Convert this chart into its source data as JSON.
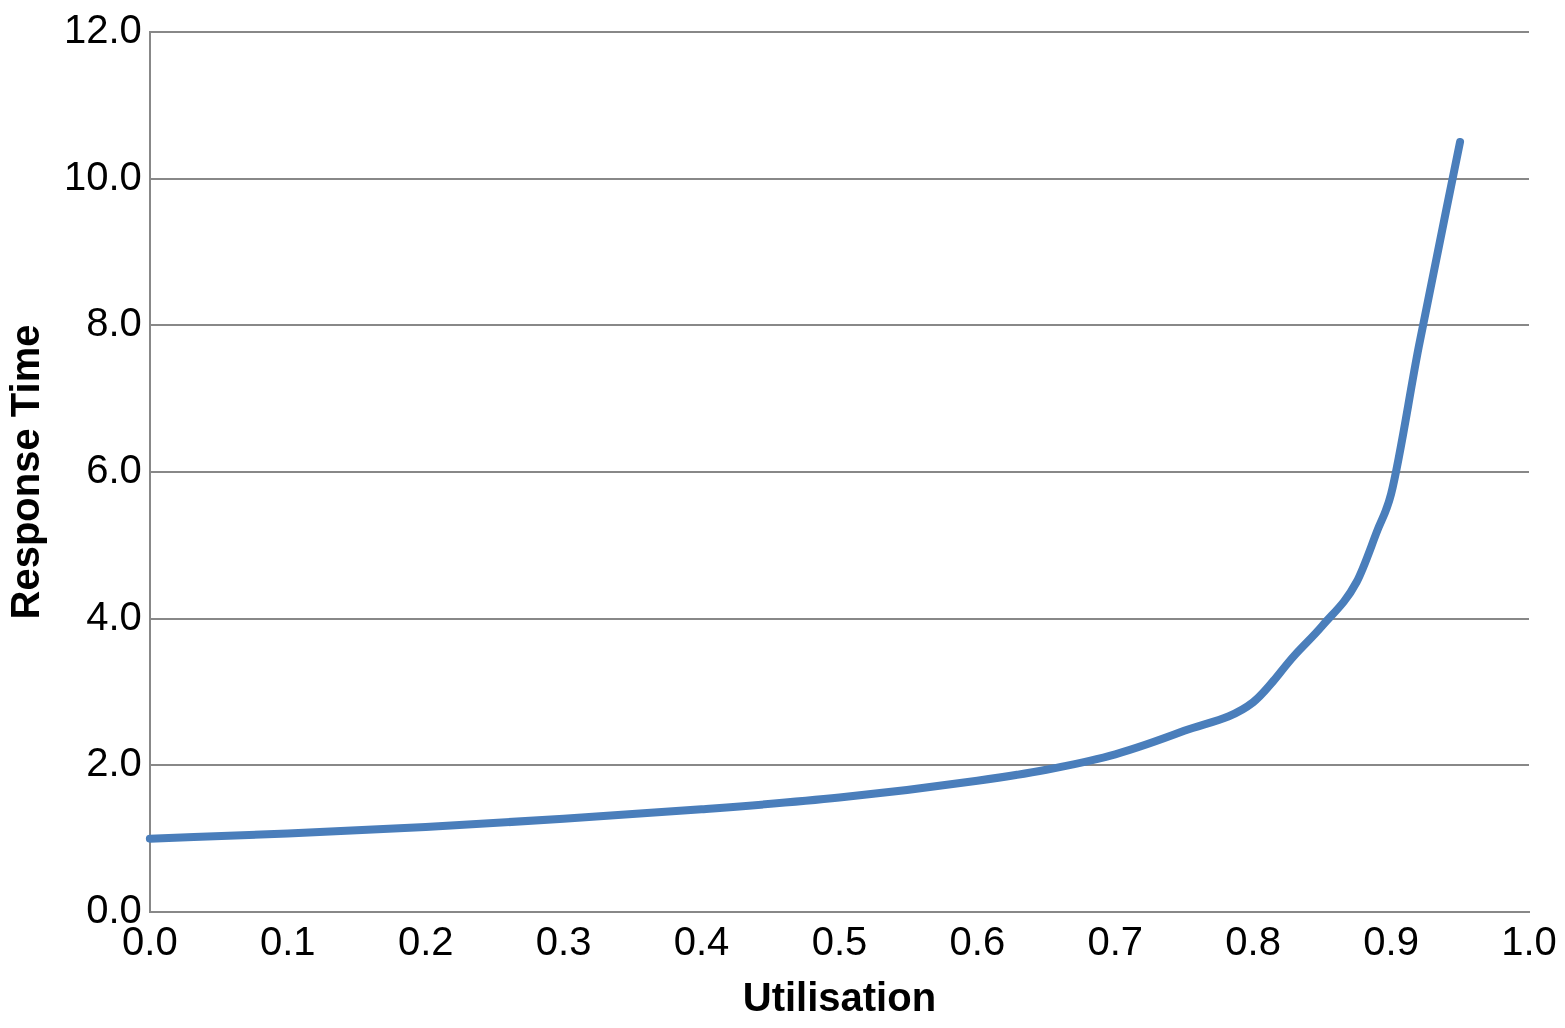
{
  "chart_data": {
    "type": "line",
    "xlabel": "Utilisation",
    "ylabel": "Response Time",
    "x": [
      0,
      0.1,
      0.2,
      0.3,
      0.4,
      0.5,
      0.6,
      0.65,
      0.7,
      0.75,
      0.8,
      0.83,
      0.85,
      0.875,
      0.89,
      0.9,
      0.92,
      0.95
    ],
    "series": [
      {
        "color": "#4a7ebb",
        "values": [
          1.0,
          1.07,
          1.16,
          1.27,
          1.4,
          1.56,
          1.79,
          1.94,
          2.15,
          2.47,
          2.86,
          3.5,
          3.9,
          4.5,
          5.2,
          5.7,
          7.7,
          10.5
        ]
      }
    ],
    "xlim": [
      0,
      1
    ],
    "xticks": [
      {
        "value": 0,
        "label": "0.0"
      },
      0.1,
      0.2,
      0.3,
      0.4,
      0.5,
      0.6,
      0.7,
      0.8,
      0.9,
      {
        "value": 1,
        "label": "1.0"
      }
    ],
    "ylim": [
      0,
      12
    ],
    "yticks": [
      {
        "value": 0,
        "label": "0.0"
      },
      {
        "value": 2,
        "label": "2.0"
      },
      {
        "value": 4,
        "label": "4.0"
      },
      {
        "value": 6,
        "label": "6.0"
      },
      {
        "value": 8,
        "label": "8.0"
      },
      {
        "value": 10,
        "label": "10.0"
      },
      {
        "value": 12,
        "label": "12.0"
      }
    ],
    "grid": "y",
    "legend": false,
    "marker": "none",
    "line_style": "solid"
  }
}
